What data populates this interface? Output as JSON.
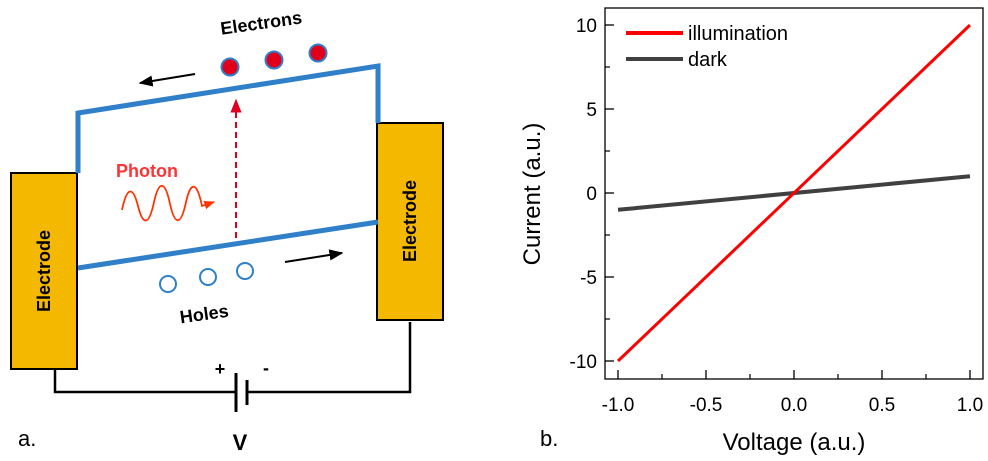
{
  "diagram": {
    "label_electrons": "Electrons",
    "label_holes": "Holes",
    "label_photon": "Photon",
    "label_electrode_left": "Electrode",
    "label_electrode_right": "Electrode",
    "label_plus": "+",
    "label_minus": "-",
    "label_voltage": "V",
    "panel_label": "a.",
    "colors": {
      "band": "#2f7fc9",
      "electrode": "#f5b800",
      "electron_fill": "#e0001b",
      "photon": "#ff3300",
      "photon_text": "#ff3333",
      "wire": "#000000"
    }
  },
  "chart": {
    "panel_label": "b.",
    "xlabel": "Voltage (a.u.)",
    "ylabel": "Current (a.u.)",
    "xticks": [
      "-1.0",
      "-0.5",
      "0.0",
      "0.5",
      "1.0"
    ],
    "yticks": [
      "-10",
      "-5",
      "0",
      "5",
      "10"
    ]
  },
  "chart_data": {
    "type": "line",
    "xlabel": "Voltage (a.u.)",
    "ylabel": "Current (a.u.)",
    "xlim": [
      -1.0,
      1.0
    ],
    "ylim": [
      -11,
      11
    ],
    "grid": false,
    "legend": "top-left",
    "series": [
      {
        "name": "illumination",
        "color": "#ff0000",
        "x": [
          -1.0,
          1.0
        ],
        "y": [
          -10,
          10
        ]
      },
      {
        "name": "dark",
        "color": "#404040",
        "x": [
          -1.0,
          1.0
        ],
        "y": [
          -1,
          1
        ]
      }
    ]
  }
}
